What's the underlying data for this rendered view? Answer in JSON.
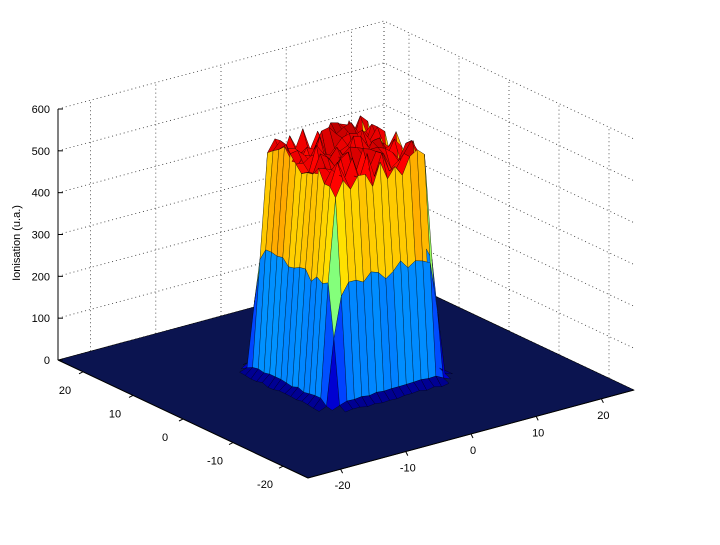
{
  "chart_data": {
    "type": "surface",
    "title": "",
    "xlabel": "",
    "ylabel": "",
    "zlabel": "Ionisation (u.a.)",
    "xlim": [
      -25,
      25
    ],
    "ylim": [
      -25,
      25
    ],
    "zlim": [
      0,
      600
    ],
    "xticks": [
      -20,
      -10,
      0,
      10,
      20
    ],
    "yticks": [
      -20,
      -10,
      0,
      10,
      20
    ],
    "zticks": [
      0,
      100,
      200,
      300,
      400,
      500,
      600
    ],
    "grid": true,
    "colormap": "jet",
    "surface": {
      "shape": "flat-top plateau",
      "center": [
        0,
        0
      ],
      "half_width": 8,
      "plateau_value": 520,
      "peak_max": 600,
      "background": 0
    }
  }
}
